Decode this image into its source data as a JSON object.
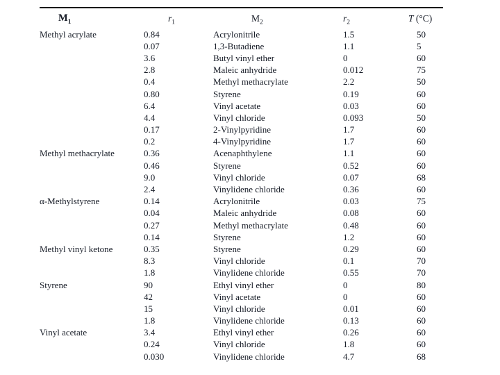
{
  "table": {
    "headers": {
      "m1": {
        "base": "M",
        "sub": "1"
      },
      "r1": {
        "base": "r",
        "sub": "1"
      },
      "m2": {
        "base": "M",
        "sub": "2"
      },
      "r2": {
        "base": "r",
        "sub": "2"
      },
      "t": {
        "base": "T",
        "suffix": " (°C)"
      }
    },
    "sections": [
      {
        "m1": "Methyl acrylate",
        "rows": [
          {
            "r1": "0.84",
            "m2": "Acrylonitrile",
            "r2": "1.5",
            "t": "50"
          },
          {
            "r1": "0.07",
            "m2": "1,3-Butadiene",
            "r2": "1.1",
            "t": "5"
          },
          {
            "r1": "3.6",
            "m2": "Butyl vinyl ether",
            "r2": "0",
            "t": "60"
          },
          {
            "r1": "2.8",
            "m2": "Maleic anhydride",
            "r2": "0.012",
            "t": "75"
          },
          {
            "r1": "0.4",
            "m2": "Methyl methacrylate",
            "r2": "2.2",
            "t": "50"
          },
          {
            "r1": "0.80",
            "m2": "Styrene",
            "r2": "0.19",
            "t": "60"
          },
          {
            "r1": "6.4",
            "m2": "Vinyl acetate",
            "r2": "0.03",
            "t": "60"
          },
          {
            "r1": "4.4",
            "m2": "Vinyl chloride",
            "r2": "0.093",
            "t": "50"
          },
          {
            "r1": "0.17",
            "m2": "2-Vinylpyridine",
            "r2": "1.7",
            "t": "60"
          },
          {
            "r1": "0.2",
            "m2": "4-Vinylpyridine",
            "r2": "1.7",
            "t": "60"
          }
        ]
      },
      {
        "m1": "Methyl methacrylate",
        "rows": [
          {
            "r1": "0.36",
            "m2": "Acenaphthylene",
            "r2": "1.1",
            "t": "60"
          },
          {
            "r1": "0.46",
            "m2": "Styrene",
            "r2": "0.52",
            "t": "60"
          },
          {
            "r1": "9.0",
            "m2": "Vinyl chloride",
            "r2": "0.07",
            "t": "68"
          },
          {
            "r1": "2.4",
            "m2": "Vinylidene chloride",
            "r2": "0.36",
            "t": "60"
          }
        ]
      },
      {
        "m1": "α-Methylstyrene",
        "rows": [
          {
            "r1": "0.14",
            "m2": "Acrylonitrile",
            "r2": "0.03",
            "t": "75"
          },
          {
            "r1": "0.04",
            "m2": "Maleic anhydride",
            "r2": "0.08",
            "t": "60"
          },
          {
            "r1": "0.27",
            "m2": "Methyl methacrylate",
            "r2": "0.48",
            "t": "60"
          },
          {
            "r1": "0.14",
            "m2": "Styrene",
            "r2": "1.2",
            "t": "60"
          }
        ]
      },
      {
        "m1": "Methyl vinyl ketone",
        "rows": [
          {
            "r1": "0.35",
            "m2": "Styrene",
            "r2": "0.29",
            "t": "60"
          },
          {
            "r1": "8.3",
            "m2": "Vinyl chloride",
            "r2": "0.1",
            "t": "70"
          },
          {
            "r1": "1.8",
            "m2": "Vinylidene chloride",
            "r2": "0.55",
            "t": "70"
          }
        ]
      },
      {
        "m1": "Styrene",
        "rows": [
          {
            "r1": "90",
            "m2": "Ethyl vinyl ether",
            "r2": "0",
            "t": "80"
          },
          {
            "r1": "42",
            "m2": "Vinyl acetate",
            "r2": "0",
            "t": "60"
          },
          {
            "r1": "15",
            "m2": "Vinyl chloride",
            "r2": "0.01",
            "t": "60"
          },
          {
            "r1": "1.8",
            "m2": "Vinylidene chloride",
            "r2": "0.13",
            "t": "60"
          }
        ]
      },
      {
        "m1": "Vinyl acetate",
        "rows": [
          {
            "r1": "3.4",
            "m2": "Ethyl vinyl ether",
            "r2": "0.26",
            "t": "60"
          },
          {
            "r1": "0.24",
            "m2": "Vinyl chloride",
            "r2": "1.8",
            "t": "60"
          },
          {
            "r1": "0.030",
            "m2": "Vinylidene chloride",
            "r2": "4.7",
            "t": "68"
          }
        ]
      }
    ]
  },
  "colors": {
    "background": "#ffffff",
    "text": "#161b26",
    "rule": "#141414"
  }
}
